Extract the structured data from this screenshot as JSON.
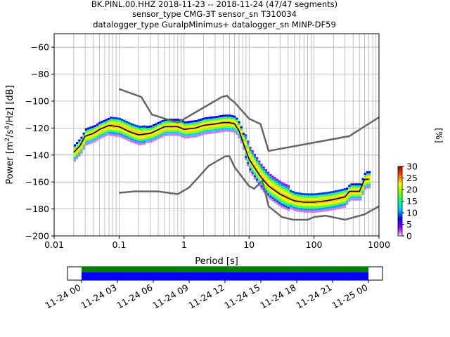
{
  "title_lines": [
    "BK.PINL.00.HHZ   2018-11-23 -- 2018-11-24  (47/47 segments)",
    "sensor_type CMG-3T sensor_sn T310034",
    "datalogger_type GuralpMinimus+ datalogger_sn MINP-DF59"
  ],
  "chart_data": [
    {
      "type": "heatmap",
      "subtype": "probabilistic power spectral density",
      "xlabel": "Period [s]",
      "ylabel": "Power [m²/s⁴/Hz] [dB]",
      "xscale": "log",
      "xlim": [
        0.01,
        1000
      ],
      "ylim": [
        -200,
        -50
      ],
      "x_tick_labels": [
        "0.01",
        "0.1",
        "1",
        "10",
        "100",
        "1000"
      ],
      "x_tick_values": [
        0.01,
        0.1,
        1,
        10,
        100,
        1000
      ],
      "y_tick_values": [
        -200,
        -180,
        -160,
        -140,
        -120,
        -100,
        -80,
        -60
      ],
      "y_tick_labels": [
        "−200",
        "−180",
        "−160",
        "−140",
        "−120",
        "−100",
        "−80",
        "−60"
      ],
      "grid": true,
      "mode_line": {
        "x": [
          0.02,
          0.025,
          0.03,
          0.04,
          0.05,
          0.07,
          0.1,
          0.15,
          0.2,
          0.3,
          0.5,
          0.8,
          1.0,
          1.5,
          2.0,
          3.0,
          4.0,
          5.0,
          6.0,
          7.0,
          8.0,
          10,
          12,
          15,
          20,
          30,
          40,
          50,
          70,
          100,
          150,
          200,
          300,
          350,
          500,
          600,
          700
        ],
        "y": [
          -138,
          -133,
          -126,
          -124,
          -121,
          -118,
          -119,
          -123,
          -125,
          -124,
          -119,
          -119,
          -121,
          -120,
          -118,
          -117,
          -116,
          -116,
          -117,
          -122,
          -130,
          -143,
          -149,
          -156,
          -163,
          -169,
          -172,
          -174,
          -175,
          -175,
          -174,
          -173,
          -171,
          -167,
          -167,
          -158,
          -158
        ]
      },
      "reference_models": {
        "high_noise": {
          "x": [
            0.1,
            0.22,
            0.32,
            0.8,
            3.8,
            4.6,
            5.0,
            6.0,
            10,
            15,
            20,
            350,
            1000
          ],
          "y": [
            -91,
            -97,
            -110,
            -116,
            -97,
            -96,
            -98,
            -101,
            -113,
            -117,
            -137,
            -126,
            -112
          ]
        },
        "low_noise": {
          "x": [
            0.1,
            0.17,
            0.4,
            0.8,
            1.2,
            2.4,
            4.3,
            5.0,
            6.0,
            10,
            12,
            16,
            20,
            32,
            48,
            80,
            100,
            150,
            300,
            600,
            1000
          ],
          "y": [
            -168,
            -167,
            -167,
            -169,
            -164,
            -148,
            -141,
            -141,
            -149,
            -163,
            -165,
            -159,
            -178,
            -186,
            -188,
            -188,
            -186,
            -185,
            -188,
            -184,
            -178
          ]
        }
      },
      "colorbar": {
        "label": "[%]",
        "range": [
          0,
          30
        ],
        "tick_labels": [
          "0",
          "5",
          "10",
          "15",
          "20",
          "25",
          "30"
        ],
        "tick_values": [
          0,
          5,
          10,
          15,
          20,
          25,
          30
        ],
        "colormap": "pqlx"
      }
    },
    {
      "type": "timeline",
      "tick_labels": [
        "11-24 00",
        "11-24 03",
        "11-24 06",
        "11-24 09",
        "11-24 12",
        "11-24 15",
        "11-24 18",
        "11-24 21",
        "11-25 00"
      ],
      "coverage": [
        {
          "name": "data",
          "color": "#0000ff",
          "start": "11-24 00",
          "end": "11-25 00"
        },
        {
          "name": "psd segments",
          "color": "#008000",
          "start": "11-24 00",
          "end": "11-25 00"
        }
      ]
    }
  ]
}
